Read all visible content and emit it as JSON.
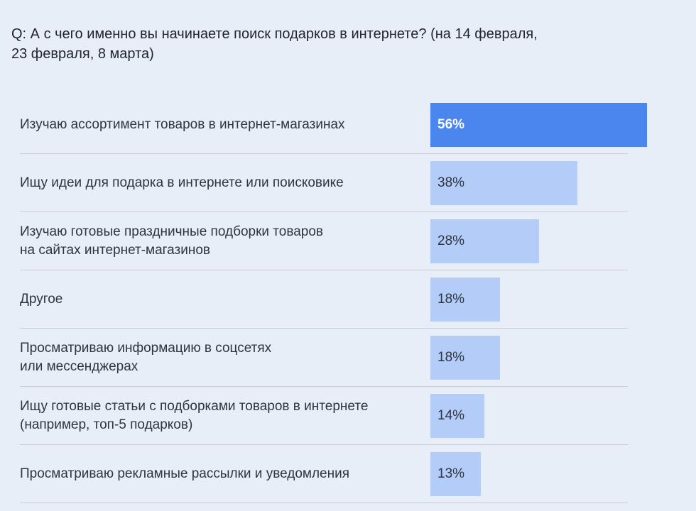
{
  "question": "Q: А с чего именно вы начинаете поиск подарков в интернете? (на 14 февраля,\n23 февраля, 8 марта)",
  "colors": {
    "background": "#e8eef8",
    "highlight_bar": "#4a86ee",
    "bar": "#b3cdf8"
  },
  "chart_data": {
    "type": "bar",
    "orientation": "horizontal",
    "categories": [
      "Изучаю ассортимент товаров в интернет-магазинах",
      "Ищу идеи для подарка в интернете или поисковике",
      "Изучаю готовые праздничные подборки товаров\nна сайтах интернет-магазинов",
      "Другое",
      "Просматриваю информацию в соцсетях\nили мессенджерах",
      "Ищу готовые статьи с подборками товаров в интернете\n(например, топ-5 подарков)",
      "Просматриваю рекламные рассылки и уведомления"
    ],
    "values": [
      56,
      38,
      28,
      18,
      18,
      14,
      13
    ],
    "value_labels": [
      "56%",
      "38%",
      "28%",
      "18%",
      "18%",
      "14%",
      "13%"
    ],
    "unit": "%",
    "highlight_index": 0,
    "xlim": [
      0,
      56
    ]
  }
}
